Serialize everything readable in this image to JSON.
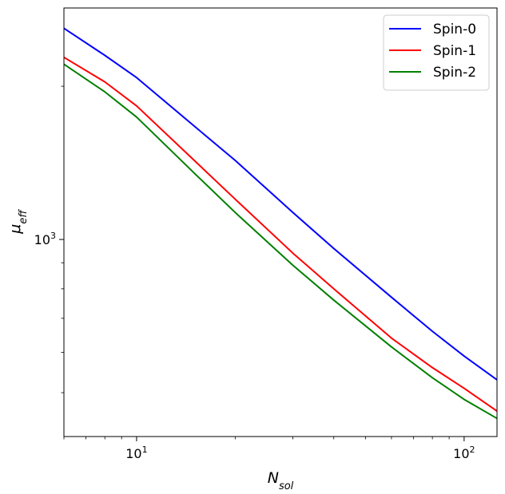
{
  "chart_data": {
    "type": "line",
    "xscale": "log",
    "yscale": "log",
    "xlim": [
      6,
      126
    ],
    "ylim": [
      410,
      2850
    ],
    "xlabel_base": "N",
    "xlabel_sub": "sol",
    "ylabel_base": "μ",
    "ylabel_sub": "eff",
    "x_ticks": [
      {
        "value": 10,
        "base": "10",
        "exp": "1"
      },
      {
        "value": 100,
        "base": "10",
        "exp": "2"
      }
    ],
    "y_ticks": [
      {
        "value": 1000,
        "base": "10",
        "exp": "3"
      }
    ],
    "x_minor_ticks": [
      6,
      7,
      8,
      9,
      20,
      30,
      40,
      50,
      60,
      70,
      80,
      90
    ],
    "y_minor_ticks": [
      500,
      600,
      700,
      800,
      900,
      2000
    ],
    "grid": false,
    "legend_position": "top-right",
    "series": [
      {
        "name": "Spin-0",
        "color": "#0000ff",
        "x": [
          6,
          8,
          10,
          15,
          20,
          30,
          40,
          60,
          80,
          100,
          126
        ],
        "y": [
          2600,
          2300,
          2080,
          1670,
          1430,
          1130,
          960,
          770,
          660,
          590,
          530
        ]
      },
      {
        "name": "Spin-1",
        "color": "#ff0000",
        "x": [
          6,
          8,
          10,
          15,
          20,
          30,
          40,
          60,
          80,
          100,
          126
        ],
        "y": [
          2280,
          2040,
          1830,
          1430,
          1200,
          940,
          800,
          640,
          560,
          510,
          460
        ]
      },
      {
        "name": "Spin-2",
        "color": "#008000",
        "x": [
          6,
          8,
          10,
          15,
          20,
          30,
          40,
          60,
          80,
          100,
          126
        ],
        "y": [
          2210,
          1950,
          1740,
          1350,
          1130,
          890,
          760,
          615,
          535,
          485,
          445
        ]
      }
    ]
  }
}
